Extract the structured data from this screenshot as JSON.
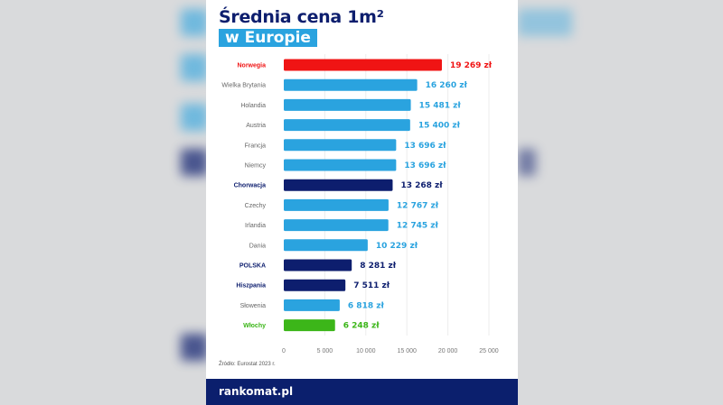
{
  "header": {
    "title_line1": "Średnia cena 1m²",
    "title_line2": "w Europie"
  },
  "source": "Źródło: Eurostat 2023 r.",
  "footer": {
    "logo": "rankomat.pl"
  },
  "colors": {
    "default": "#2aa3df",
    "highlight_red": "#f01414",
    "highlight_navy": "#0d1e6e",
    "highlight_green": "#3cb619",
    "navy": "#0b1f6d"
  },
  "chart_data": {
    "type": "bar",
    "orientation": "horizontal",
    "title": "Średnia cena 1m² w Europie",
    "categories": [
      "Norwegia",
      "Wielka Brytania",
      "Holandia",
      "Austria",
      "Francja",
      "Niemcy",
      "Chorwacja",
      "Czechy",
      "Irlandia",
      "Dania",
      "POLSKA",
      "Hiszpania",
      "Słowenia",
      "Włochy"
    ],
    "values": [
      19269,
      16260,
      15481,
      15400,
      13696,
      13696,
      13268,
      12767,
      12745,
      10229,
      8281,
      7511,
      6818,
      6248
    ],
    "value_labels": [
      "19 269 zł",
      "16 260 zł",
      "15 481 zł",
      "15 400 zł",
      "13 696 zł",
      "13 696 zł",
      "13 268 zł",
      "12 767 zł",
      "12 745 zł",
      "10 229 zł",
      "8 281 zł",
      "7 511 zł",
      "6 818 zł",
      "6 248 zł"
    ],
    "bar_colors": [
      "#f01414",
      "#2aa3df",
      "#2aa3df",
      "#2aa3df",
      "#2aa3df",
      "#2aa3df",
      "#0d1e6e",
      "#2aa3df",
      "#2aa3df",
      "#2aa3df",
      "#0d1e6e",
      "#0d1e6e",
      "#2aa3df",
      "#3cb619"
    ],
    "highlighted": [
      true,
      false,
      false,
      false,
      false,
      false,
      true,
      false,
      false,
      false,
      true,
      true,
      false,
      true
    ],
    "xlim": [
      0,
      25000
    ],
    "xticks": [
      0,
      5000,
      10000,
      15000,
      20000,
      25000
    ],
    "xtick_labels": [
      "0",
      "5 000",
      "10 000",
      "15 000",
      "20 000",
      "25 000"
    ],
    "grid": "vertical",
    "unit": "zł"
  }
}
